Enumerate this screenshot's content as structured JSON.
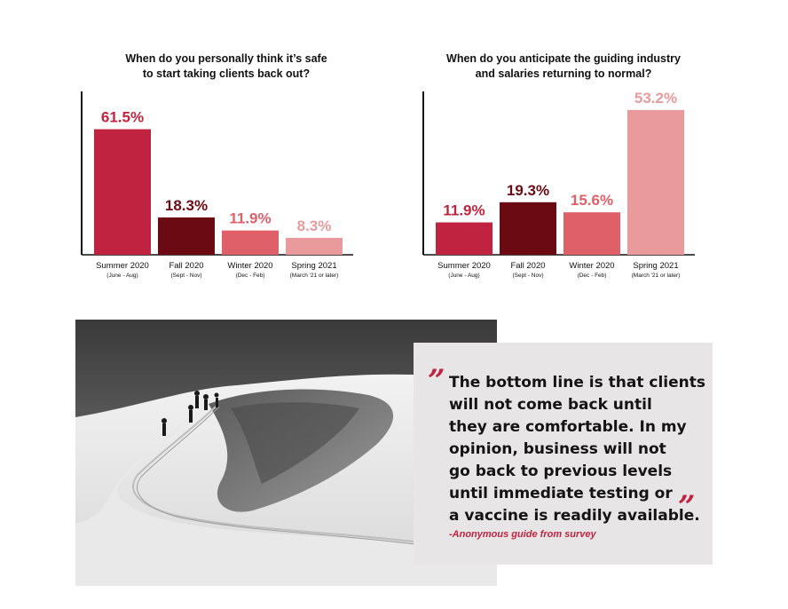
{
  "colors": {
    "crimson": "#c0233f",
    "maroon": "#6b0a12",
    "coral": "#e0606a",
    "pink": "#e99a9c",
    "quote_bg": "#e7e5e6"
  },
  "chart_data": [
    {
      "type": "bar",
      "title": "When do you personally think it’s safe to start taking clients back out?",
      "title_lines": [
        "When do you personally think it’s safe",
        "to start taking clients back out?"
      ],
      "categories": [
        "Summer 2020",
        "Fall 2020",
        "Winter 2020",
        "Spring 2021"
      ],
      "sublabels": [
        "(June - Aug)",
        "(Sept - Nov)",
        "(Dec - Feb)",
        "(March '21 or later)"
      ],
      "values": [
        61.5,
        18.3,
        11.9,
        8.3
      ],
      "value_labels": [
        "61.5%",
        "18.3%",
        "11.9%",
        "8.3%"
      ],
      "bar_colors": [
        "#c0233f",
        "#6b0a12",
        "#e0606a",
        "#e99a9c"
      ],
      "xlabel": "",
      "ylabel": "",
      "ylim": [
        0,
        80
      ],
      "grid": false
    },
    {
      "type": "bar",
      "title": "When do you anticipate the guiding industry and salaries returning to normal?",
      "title_lines": [
        "When do you anticipate the guiding industry",
        "and salaries returning to normal?"
      ],
      "categories": [
        "Summer 2020",
        "Fall 2020",
        "Winter 2020",
        "Spring 2021"
      ],
      "sublabels": [
        "(June - Aug)",
        "(Sept - Nov)",
        "(Dec - Feb)",
        "(March '21 or later)"
      ],
      "values": [
        11.9,
        19.3,
        15.6,
        53.2
      ],
      "value_labels": [
        "11.9%",
        "19.3%",
        "15.6%",
        "53.2%"
      ],
      "bar_colors": [
        "#c0233f",
        "#6b0a12",
        "#e0606a",
        "#e99a9c"
      ],
      "xlabel": "",
      "ylabel": "",
      "ylim": [
        0,
        60
      ],
      "grid": false
    }
  ],
  "quote": {
    "open_mark": "”",
    "close_mark": "”",
    "lines": [
      "The bottom line is that clients",
      "will not come back until",
      "they are comfortable. In my",
      "opinion, business will not",
      "go back to previous levels",
      "until immediate testing or",
      "a vaccine is readily available."
    ],
    "attribution": "-Anonymous guide from survey"
  }
}
